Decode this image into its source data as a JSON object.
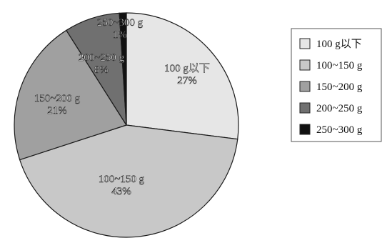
{
  "chart_data": {
    "type": "pie",
    "categories": [
      "100 g以下",
      "100~150 g",
      "150~200 g",
      "200~250 g",
      "250~300 g"
    ],
    "values": [
      27,
      43,
      21,
      8,
      1
    ],
    "unit": "%",
    "slice_labels": [
      {
        "name": "100 g以下",
        "value": "27%"
      },
      {
        "name": "100~150 g",
        "value": "43%"
      },
      {
        "name": "150~200 g",
        "value": "21%"
      },
      {
        "name": "200~250 g",
        "value": "8%"
      },
      {
        "name": "250~300 g",
        "value": "1%"
      }
    ],
    "colors": [
      "#e6e6e6",
      "#c8c8c8",
      "#a0a0a0",
      "#707070",
      "#111111"
    ],
    "start": "12 o'clock",
    "direction": "clockwise",
    "legend": {
      "position": "right",
      "entries": [
        "100 g以下",
        "100~150 g",
        "150~200 g",
        "200~250 g",
        "250~300 g"
      ]
    },
    "title": "",
    "xlabel": "",
    "ylabel": ""
  }
}
